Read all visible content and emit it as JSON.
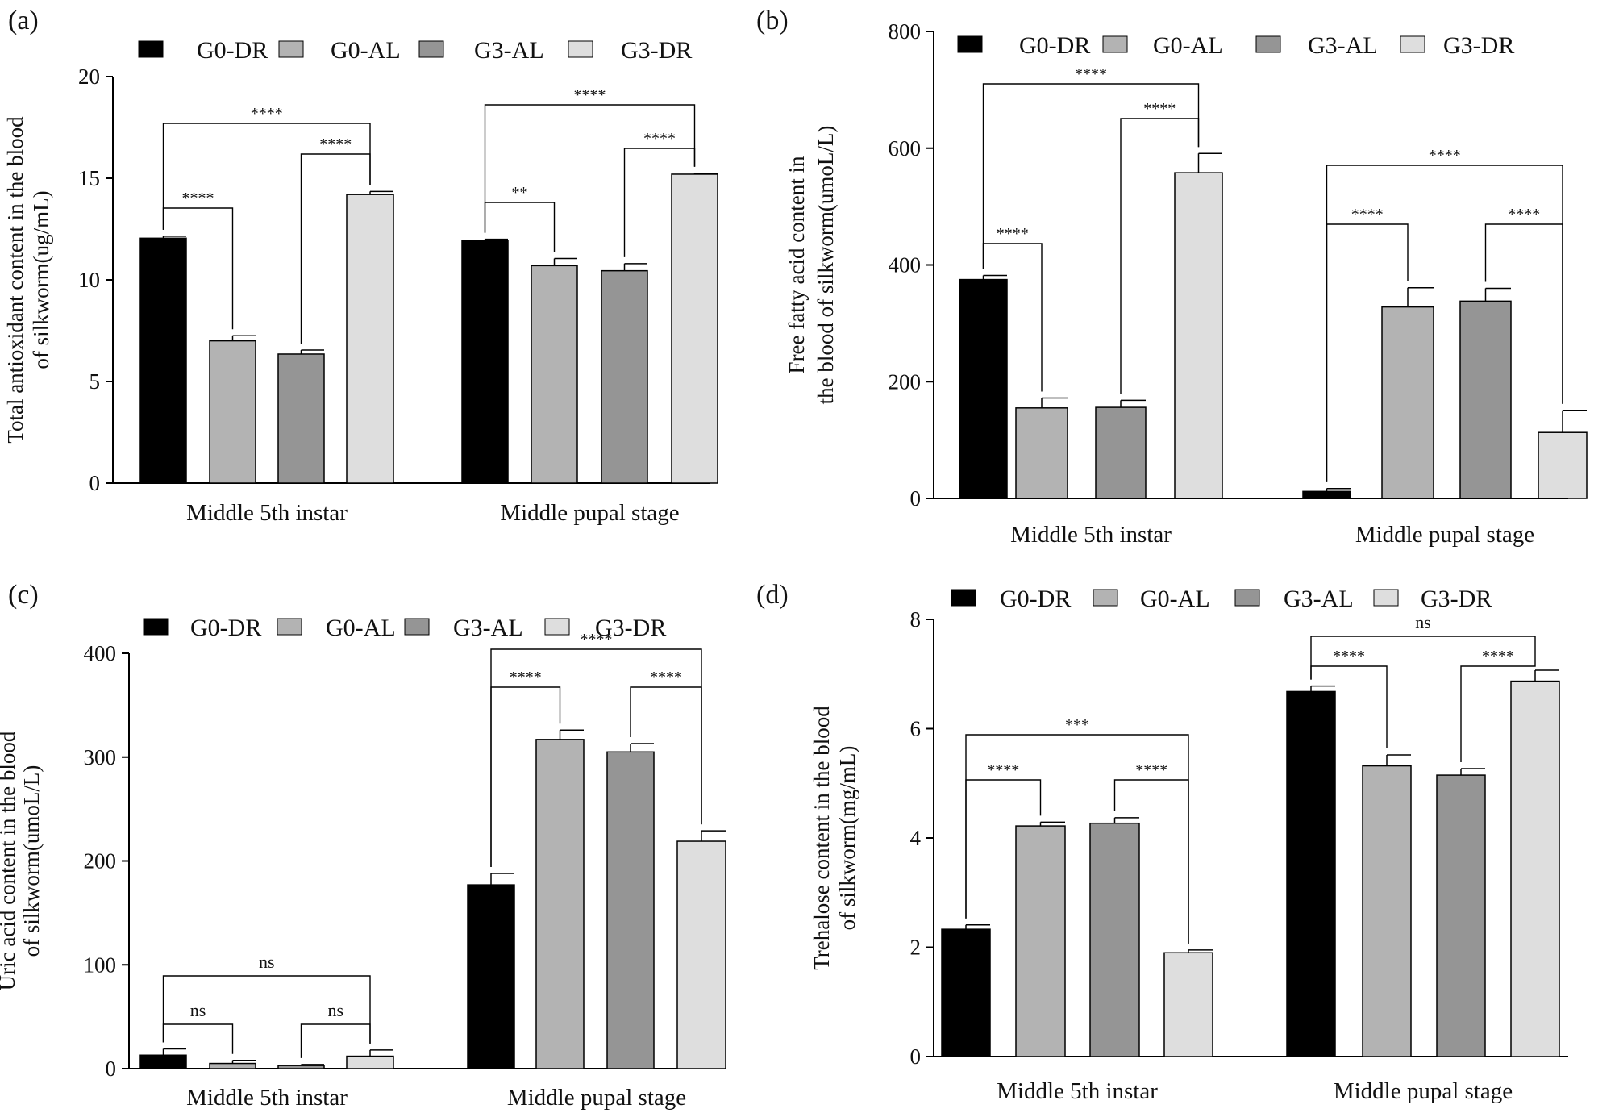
{
  "figure": {
    "panel_count": 4
  },
  "colors": {
    "G0-DR": "#000000",
    "G0-AL": "#b3b3b3",
    "G3-AL": "#959595",
    "G3-DR": "#dedede",
    "axis": "#000000"
  },
  "chart_data": [
    {
      "panel_label": "(a)",
      "type": "bar",
      "categories": [
        "Middle 5th instar",
        "Middle pupal stage"
      ],
      "series": [
        {
          "name": "G0-DR",
          "values": [
            12.05,
            11.95
          ],
          "errors": [
            0.1,
            0.05
          ]
        },
        {
          "name": "G0-AL",
          "values": [
            7.0,
            10.7
          ],
          "errors": [
            0.25,
            0.35
          ]
        },
        {
          "name": "G3-AL",
          "values": [
            6.35,
            10.45
          ],
          "errors": [
            0.2,
            0.35
          ]
        },
        {
          "name": "G3-DR",
          "values": [
            14.2,
            15.2
          ],
          "errors": [
            0.15,
            0.05
          ]
        }
      ],
      "ylabel": [
        "Total antioxidant content in the blood",
        "of silkworm(ug/mL)"
      ],
      "ylim": [
        0,
        20
      ],
      "yticks": [
        0,
        5,
        10,
        15,
        20
      ],
      "legend_position": "top",
      "significance": [
        {
          "group": 0,
          "from": 0,
          "to": 1,
          "label": "****"
        },
        {
          "group": 0,
          "from": 2,
          "to": 3,
          "label": "****"
        },
        {
          "group": 0,
          "from": 0,
          "to": 3,
          "label": "****"
        },
        {
          "group": 1,
          "from": 0,
          "to": 1,
          "label": "**"
        },
        {
          "group": 1,
          "from": 2,
          "to": 3,
          "label": "****"
        },
        {
          "group": 1,
          "from": 0,
          "to": 3,
          "label": "****"
        }
      ]
    },
    {
      "panel_label": "(b)",
      "type": "bar",
      "categories": [
        "Middle 5th instar",
        "Middle pupal stage"
      ],
      "series": [
        {
          "name": "G0-DR",
          "values": [
            375,
            12
          ],
          "errors": [
            7,
            5
          ]
        },
        {
          "name": "G0-AL",
          "values": [
            155,
            328
          ],
          "errors": [
            17,
            33
          ]
        },
        {
          "name": "G3-AL",
          "values": [
            156,
            338
          ],
          "errors": [
            12,
            22
          ]
        },
        {
          "name": "G3-DR",
          "values": [
            558,
            113
          ],
          "errors": [
            33,
            38
          ]
        }
      ],
      "ylabel": [
        "Free fatty acid content in",
        "the blood of silkworm(umoL/L)"
      ],
      "ylim": [
        0,
        800
      ],
      "yticks": [
        0,
        200,
        400,
        600,
        800
      ],
      "legend_position": "top",
      "significance": [
        {
          "group": 0,
          "from": 0,
          "to": 1,
          "label": "****"
        },
        {
          "group": 0,
          "from": 2,
          "to": 3,
          "label": "****"
        },
        {
          "group": 0,
          "from": 0,
          "to": 3,
          "label": "****"
        },
        {
          "group": 1,
          "from": 0,
          "to": 1,
          "label": "****"
        },
        {
          "group": 1,
          "from": 2,
          "to": 3,
          "label": "****"
        },
        {
          "group": 1,
          "from": 0,
          "to": 3,
          "label": "****"
        }
      ]
    },
    {
      "panel_label": "(c)",
      "type": "bar",
      "categories": [
        "Middle 5th instar",
        "Middle pupal stage"
      ],
      "series": [
        {
          "name": "G0-DR",
          "values": [
            13,
            177
          ],
          "errors": [
            6,
            11
          ]
        },
        {
          "name": "G0-AL",
          "values": [
            5,
            317
          ],
          "errors": [
            3,
            9
          ]
        },
        {
          "name": "G3-AL",
          "values": [
            3,
            305
          ],
          "errors": [
            1,
            8
          ]
        },
        {
          "name": "G3-DR",
          "values": [
            12,
            219
          ],
          "errors": [
            6,
            10
          ]
        }
      ],
      "ylabel": [
        "Uric acid content in the blood",
        "of silkworm(umoL/L)"
      ],
      "ylim": [
        0,
        400
      ],
      "yticks": [
        0,
        100,
        200,
        300,
        400
      ],
      "legend_position": "top",
      "significance": [
        {
          "group": 0,
          "from": 0,
          "to": 1,
          "label": "ns"
        },
        {
          "group": 0,
          "from": 2,
          "to": 3,
          "label": "ns"
        },
        {
          "group": 0,
          "from": 0,
          "to": 3,
          "label": "ns"
        },
        {
          "group": 1,
          "from": 0,
          "to": 1,
          "label": "****"
        },
        {
          "group": 1,
          "from": 2,
          "to": 3,
          "label": "****"
        },
        {
          "group": 1,
          "from": 0,
          "to": 3,
          "label": "****"
        }
      ]
    },
    {
      "panel_label": "(d)",
      "type": "bar",
      "categories": [
        "Middle 5th instar",
        "Middle pupal stage"
      ],
      "series": [
        {
          "name": "G0-DR",
          "values": [
            2.33,
            6.68
          ],
          "errors": [
            0.08,
            0.1
          ]
        },
        {
          "name": "G0-AL",
          "values": [
            4.22,
            5.32
          ],
          "errors": [
            0.07,
            0.2
          ]
        },
        {
          "name": "G3-AL",
          "values": [
            4.27,
            5.15
          ],
          "errors": [
            0.1,
            0.12
          ]
        },
        {
          "name": "G3-DR",
          "values": [
            1.9,
            6.87
          ],
          "errors": [
            0.05,
            0.2
          ]
        }
      ],
      "ylabel": [
        "Trehalose content in the blood",
        "of silkworm(mg/mL)"
      ],
      "ylim": [
        0,
        8
      ],
      "yticks": [
        0,
        2,
        4,
        6,
        8
      ],
      "legend_position": "top",
      "significance": [
        {
          "group": 0,
          "from": 0,
          "to": 1,
          "label": "****"
        },
        {
          "group": 0,
          "from": 2,
          "to": 3,
          "label": "****"
        },
        {
          "group": 0,
          "from": 0,
          "to": 3,
          "label": "***"
        },
        {
          "group": 1,
          "from": 0,
          "to": 1,
          "label": "****"
        },
        {
          "group": 1,
          "from": 2,
          "to": 3,
          "label": "****"
        },
        {
          "group": 1,
          "from": 0,
          "to": 3,
          "label": "ns"
        }
      ]
    }
  ]
}
